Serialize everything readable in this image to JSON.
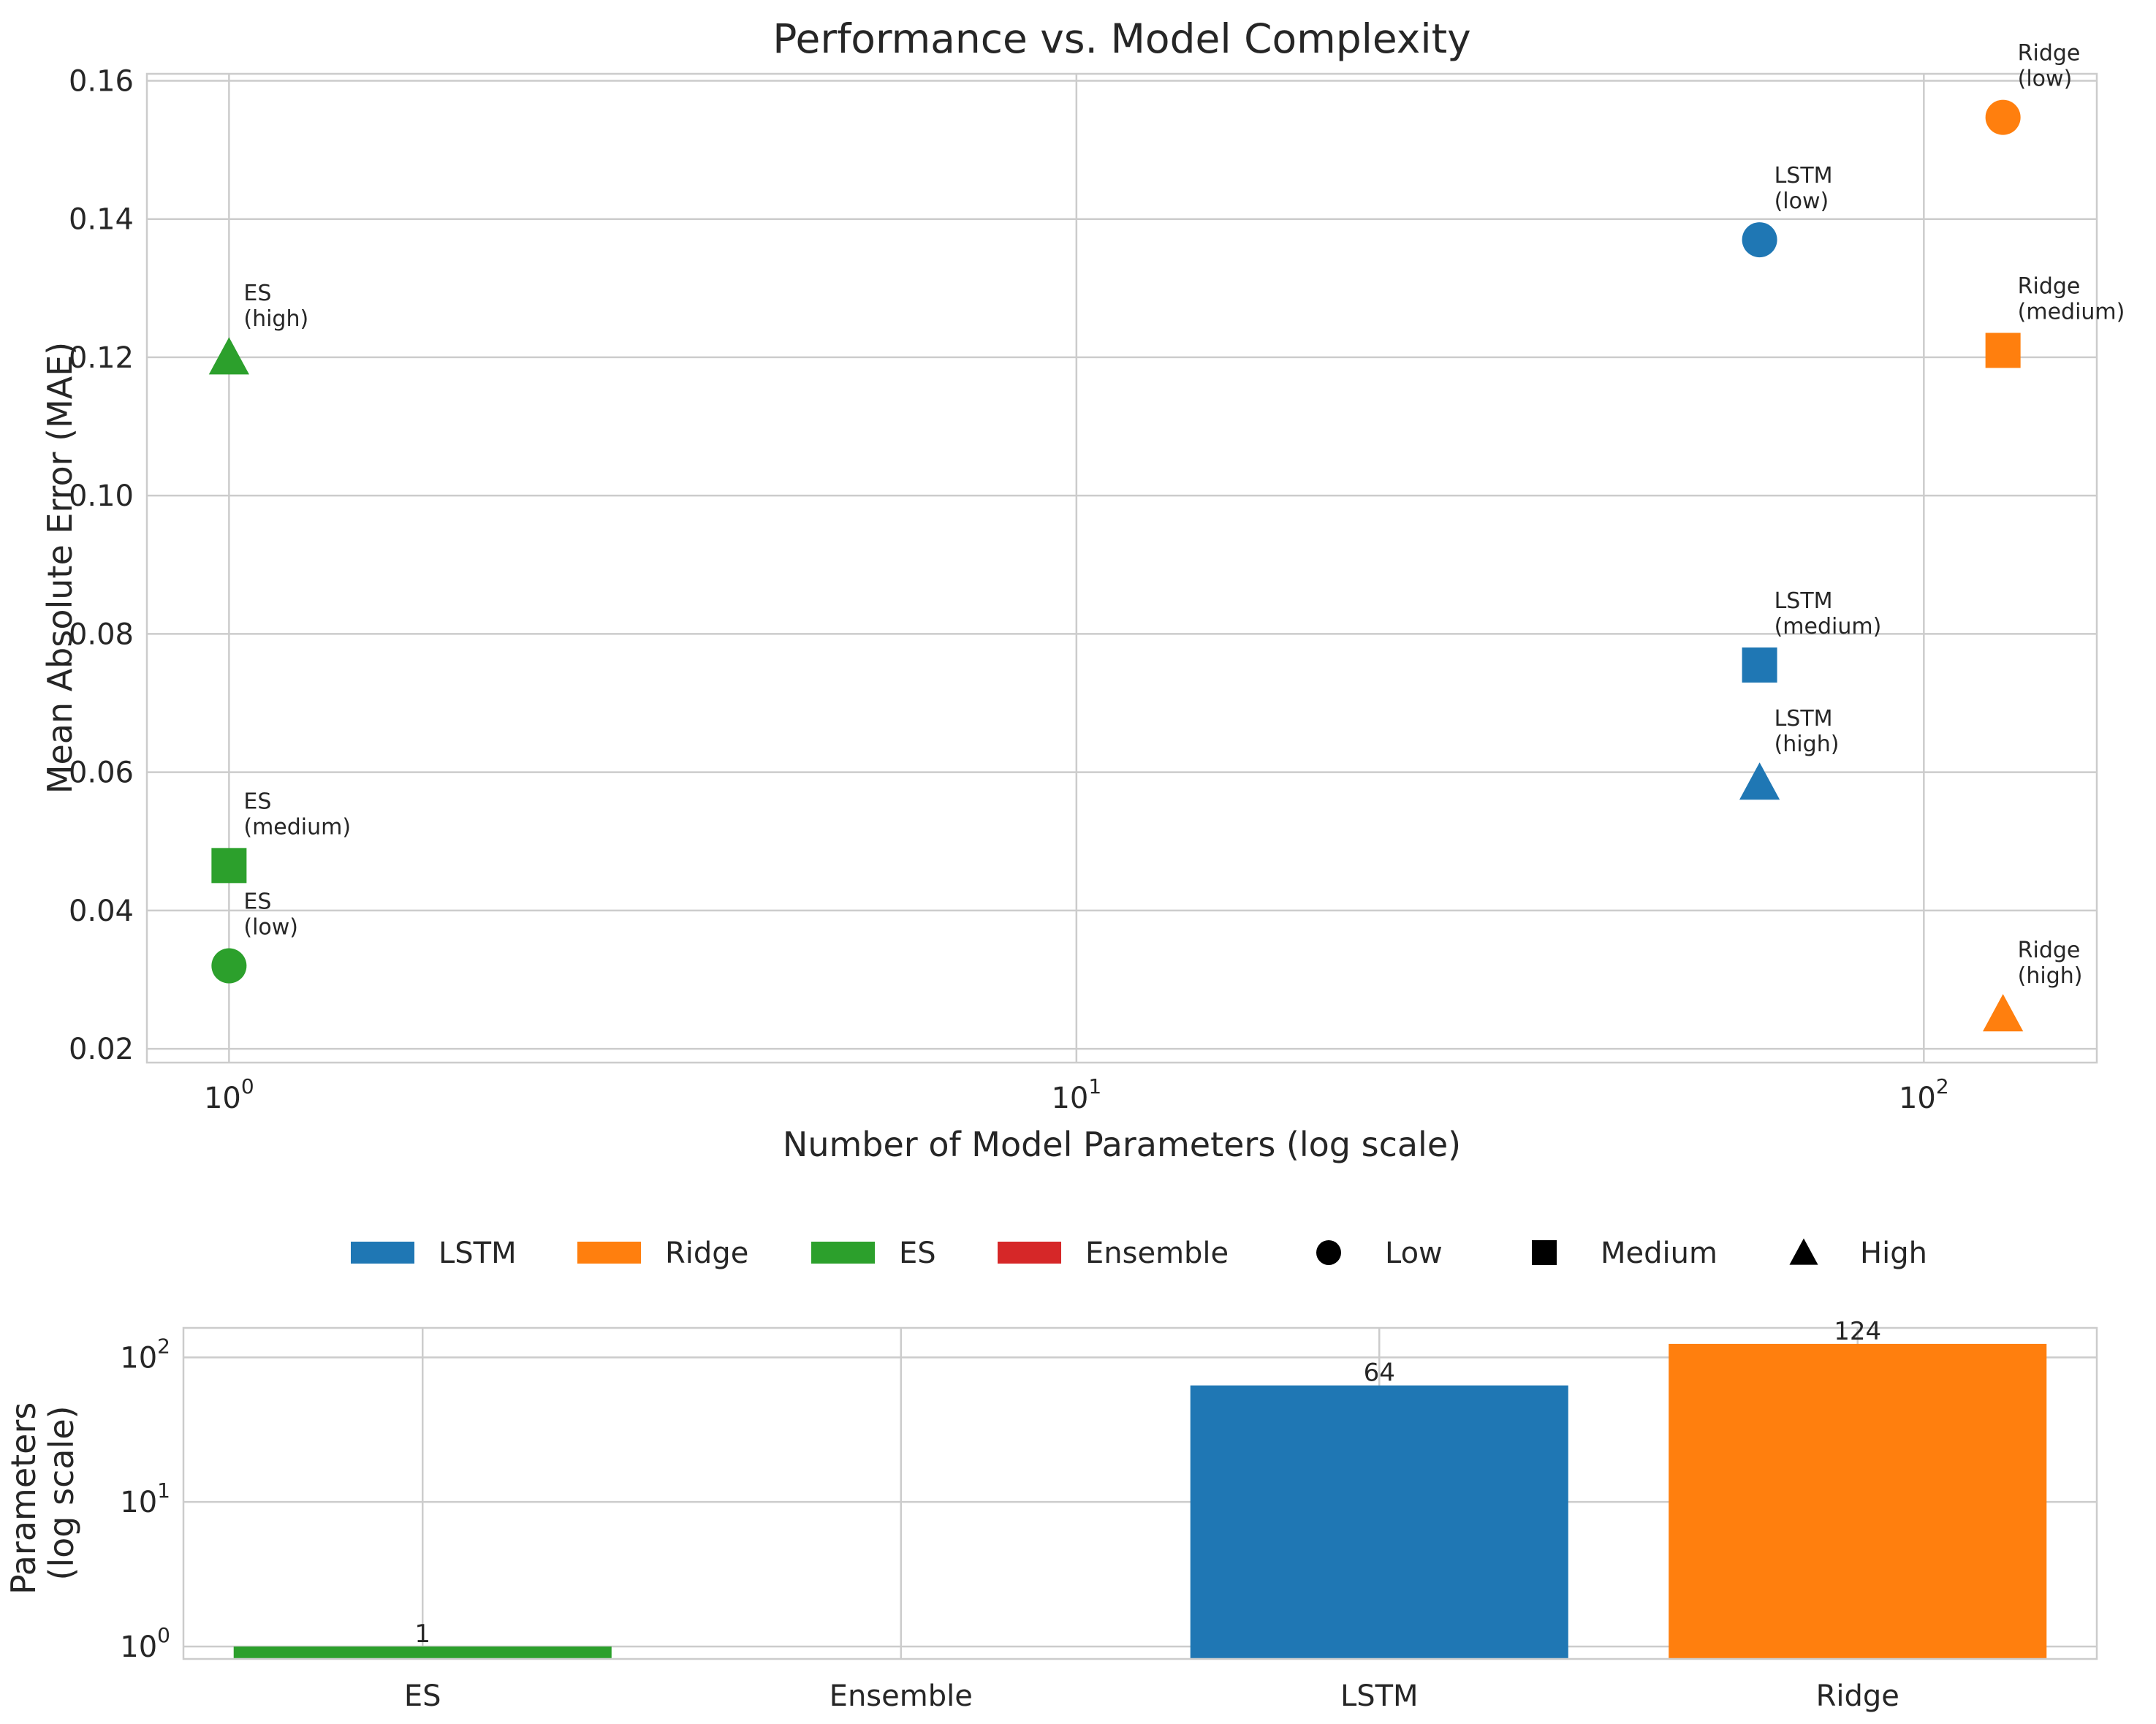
{
  "chart_data": [
    {
      "type": "scatter",
      "title": "Performance vs. Model Complexity",
      "xlabel": "Number of Model Parameters (log scale)",
      "ylabel": "Mean Absolute Error (MAE)",
      "xscale": "log",
      "xlim": [
        0.8,
        160
      ],
      "ylim": [
        0.018,
        0.161
      ],
      "grid": true,
      "x_ticks": [
        {
          "value": 1,
          "base": "10",
          "exp": "0"
        },
        {
          "value": 10,
          "base": "10",
          "exp": "1"
        },
        {
          "value": 100,
          "base": "10",
          "exp": "2"
        }
      ],
      "y_ticks": [
        "0.02",
        "0.04",
        "0.06",
        "0.08",
        "0.10",
        "0.12",
        "0.14",
        "0.16"
      ],
      "points": [
        {
          "model": "ES",
          "complexity": "high",
          "label_line1": "ES",
          "label_line2": "(high)",
          "x": 1,
          "y": 0.12,
          "marker": "triangle",
          "color": "#2ca02c"
        },
        {
          "model": "ES",
          "complexity": "medium",
          "label_line1": "ES",
          "label_line2": "(medium)",
          "x": 1,
          "y": 0.0465,
          "marker": "square",
          "color": "#2ca02c"
        },
        {
          "model": "ES",
          "complexity": "low",
          "label_line1": "ES",
          "label_line2": "(low)",
          "x": 1,
          "y": 0.032,
          "marker": "circle",
          "color": "#2ca02c"
        },
        {
          "model": "LSTM",
          "complexity": "low",
          "label_line1": "LSTM",
          "label_line2": "(low)",
          "x": 64,
          "y": 0.137,
          "marker": "circle",
          "color": "#1f77b4"
        },
        {
          "model": "LSTM",
          "complexity": "medium",
          "label_line1": "LSTM",
          "label_line2": "(medium)",
          "x": 64,
          "y": 0.0755,
          "marker": "square",
          "color": "#1f77b4"
        },
        {
          "model": "LSTM",
          "complexity": "high",
          "label_line1": "LSTM",
          "label_line2": "(high)",
          "x": 64,
          "y": 0.0585,
          "marker": "triangle",
          "color": "#1f77b4"
        },
        {
          "model": "Ridge",
          "complexity": "low",
          "label_line1": "Ridge",
          "label_line2": "(low)",
          "x": 124,
          "y": 0.1547,
          "marker": "circle",
          "color": "#ff7f0e"
        },
        {
          "model": "Ridge",
          "complexity": "medium",
          "label_line1": "Ridge",
          "label_line2": "(medium)",
          "x": 124,
          "y": 0.121,
          "marker": "square",
          "color": "#ff7f0e"
        },
        {
          "model": "Ridge",
          "complexity": "high",
          "label_line1": "Ridge",
          "label_line2": "(high)",
          "x": 124,
          "y": 0.025,
          "marker": "triangle",
          "color": "#ff7f0e"
        }
      ]
    },
    {
      "type": "bar",
      "yscale": "log",
      "ylabel_line1": "Parameters",
      "ylabel_line2": "(log scale)",
      "categories": [
        "ES",
        "Ensemble",
        "LSTM",
        "Ridge"
      ],
      "values": [
        1,
        null,
        64,
        124
      ],
      "value_labels": [
        "1",
        "",
        "64",
        "124"
      ],
      "colors": [
        "#2ca02c",
        "#d62728",
        "#1f77b4",
        "#ff7f0e"
      ],
      "ylim": [
        0.82,
        160
      ],
      "grid": true,
      "y_ticks": [
        {
          "value": 1,
          "base": "10",
          "exp": "0"
        },
        {
          "value": 10,
          "base": "10",
          "exp": "1"
        },
        {
          "value": 100,
          "base": "10",
          "exp": "2"
        }
      ]
    }
  ],
  "legend": {
    "placement": "between plots, centered",
    "items": [
      {
        "label": "LSTM",
        "kind": "patch",
        "color": "#1f77b4"
      },
      {
        "label": "Ridge",
        "kind": "patch",
        "color": "#ff7f0e"
      },
      {
        "label": "ES",
        "kind": "patch",
        "color": "#2ca02c"
      },
      {
        "label": "Ensemble",
        "kind": "patch",
        "color": "#d62728"
      },
      {
        "label": "Low",
        "kind": "marker",
        "marker": "circle",
        "color": "#000000"
      },
      {
        "label": "Medium",
        "kind": "marker",
        "marker": "square",
        "color": "#000000"
      },
      {
        "label": "High",
        "kind": "marker",
        "marker": "triangle",
        "color": "#000000"
      }
    ]
  }
}
